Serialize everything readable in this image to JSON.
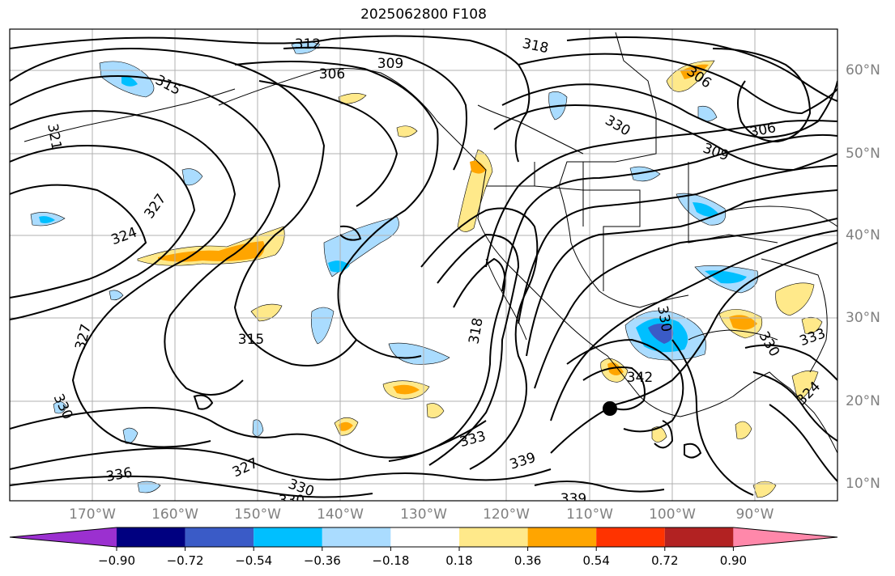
{
  "title": "2025062800 F108",
  "map": {
    "lon_labels": [
      "170°W",
      "160°W",
      "150°W",
      "140°W",
      "130°W",
      "120°W",
      "110°W",
      "100°W",
      "90°W"
    ],
    "lat_labels": [
      "60°N",
      "50°N",
      "40°N",
      "30°N",
      "20°N",
      "10°N"
    ],
    "contour_labels": [
      "312",
      "309",
      "306",
      "315",
      "321",
      "327",
      "324",
      "327",
      "315",
      "318",
      "318",
      "330",
      "306",
      "309",
      "306",
      "330",
      "342",
      "330",
      "333",
      "324",
      "330",
      "333",
      "327",
      "339",
      "330",
      "336",
      "339",
      "330"
    ],
    "contour_color": "#000000",
    "grid_color": "#b0b0b0",
    "marker": "storm-center-dot"
  },
  "colorbar": {
    "ticks": [
      "−0.90",
      "−0.72",
      "−0.54",
      "−0.36",
      "−0.18",
      "0.18",
      "0.36",
      "0.54",
      "0.72",
      "0.90"
    ],
    "colors": [
      "#9b30d0",
      "#000080",
      "#3a5bc7",
      "#00bfff",
      "#aadcff",
      "#ffffff",
      "#ffe98a",
      "#ffa500",
      "#ff3300",
      "#b22222",
      "#ff88aa"
    ]
  }
}
